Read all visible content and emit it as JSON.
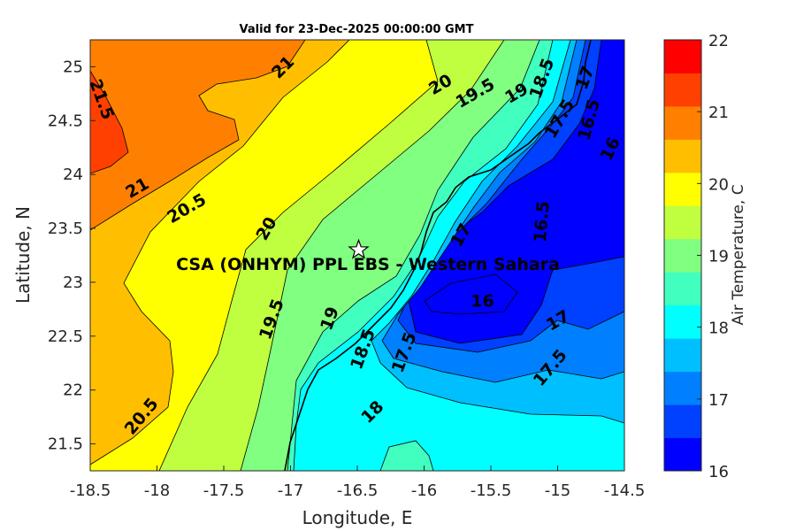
{
  "chart_data": {
    "type": "heatmap",
    "subtype": "filled-contour-map",
    "title": "Valid for 23-Dec-2025 00:00:00 GMT",
    "xlabel": "Longitude, E",
    "ylabel": "Latitude, N",
    "xlim": [
      -18.5,
      -14.5
    ],
    "ylim": [
      21.25,
      25.25
    ],
    "xticks": [
      "-18.5",
      "-18",
      "-17.5",
      "-17",
      "-16.5",
      "-16",
      "-15.5",
      "-15",
      "-14.5"
    ],
    "xtick_values": [
      -18.5,
      -18,
      -17.5,
      -17,
      -16.5,
      -16,
      -15.5,
      -15,
      -14.5
    ],
    "yticks": [
      "21.5",
      "22",
      "22.5",
      "23",
      "23.5",
      "24",
      "24.5",
      "25"
    ],
    "ytick_values": [
      21.5,
      22,
      22.5,
      23,
      23.5,
      24,
      24.5,
      25
    ],
    "contour_levels": [
      16,
      16.5,
      17,
      17.5,
      18,
      18.5,
      19,
      19.5,
      20,
      20.5,
      21,
      21.5,
      22
    ],
    "level_colors": [
      "#0000ff",
      "#0040ff",
      "#0080ff",
      "#00bfff",
      "#00ffff",
      "#40ffbf",
      "#80ff80",
      "#bfff40",
      "#ffff00",
      "#ffbf00",
      "#ff8000",
      "#ff4000"
    ],
    "colorbar": {
      "label": "Air Temperature, C",
      "range": [
        16,
        22
      ],
      "ticks": [
        "16",
        "17",
        "18",
        "19",
        "20",
        "21",
        "22"
      ],
      "tick_values": [
        16,
        17,
        18,
        19,
        20,
        21,
        22
      ],
      "colors": [
        "#0000ff",
        "#0040ff",
        "#0080ff",
        "#00bfff",
        "#00ffff",
        "#40ffbf",
        "#80ff80",
        "#bfff40",
        "#ffff00",
        "#ffbf00",
        "#ff8000",
        "#ff4000",
        "#ff0000"
      ]
    },
    "contour_labels": [
      {
        "text": "21.5",
        "lon": -18.41,
        "lat": 24.7
      },
      {
        "text": "21",
        "lon": -17.06,
        "lat": 25.0
      },
      {
        "text": "21",
        "lon": -18.15,
        "lat": 23.88
      },
      {
        "text": "20.5",
        "lon": -17.78,
        "lat": 23.69
      },
      {
        "text": "20",
        "lon": -15.88,
        "lat": 24.84
      },
      {
        "text": "19.5",
        "lon": -15.62,
        "lat": 24.76
      },
      {
        "text": "19",
        "lon": -15.31,
        "lat": 24.76
      },
      {
        "text": "18.5",
        "lon": -15.07,
        "lat": 24.63
      },
      {
        "text": "17.5",
        "lon": -14.99,
        "lat": 24.52
      },
      {
        "text": "17",
        "lon": -14.8,
        "lat": 24.9
      },
      {
        "text": "16.5",
        "lon": -14.77,
        "lat": 24.51
      },
      {
        "text": "16",
        "lon": -14.61,
        "lat": 24.24
      },
      {
        "text": "20",
        "lon": -17.35,
        "lat": 23.32
      },
      {
        "text": "19.5",
        "lon": -17.06,
        "lat": 23.07
      },
      {
        "text": "19",
        "lon": -16.46,
        "lat": 22.83
      },
      {
        "text": "18.5",
        "lon": -16.43,
        "lat": 22.66
      },
      {
        "text": "17.5",
        "lon": -16.3,
        "lat": 22.68
      },
      {
        "text": "17",
        "lon": -15.96,
        "lat": 23.03
      },
      {
        "text": "16",
        "lon": -15.51,
        "lat": 22.97
      },
      {
        "text": "16.5",
        "lon": -15.17,
        "lat": 22.97
      },
      {
        "text": "17",
        "lon": -15.0,
        "lat": 22.65
      },
      {
        "text": "17.5",
        "lon": -15.06,
        "lat": 22.21
      },
      {
        "text": "18",
        "lon": -16.39,
        "lat": 21.8
      },
      {
        "text": "20.5",
        "lon": -18.12,
        "lat": 21.76
      }
    ],
    "site": {
      "label": "CSA (ONHYM) PPL EBS - Western Sahara",
      "lon": -16.49,
      "lat": 23.3,
      "marker": "star"
    },
    "grid": false
  }
}
